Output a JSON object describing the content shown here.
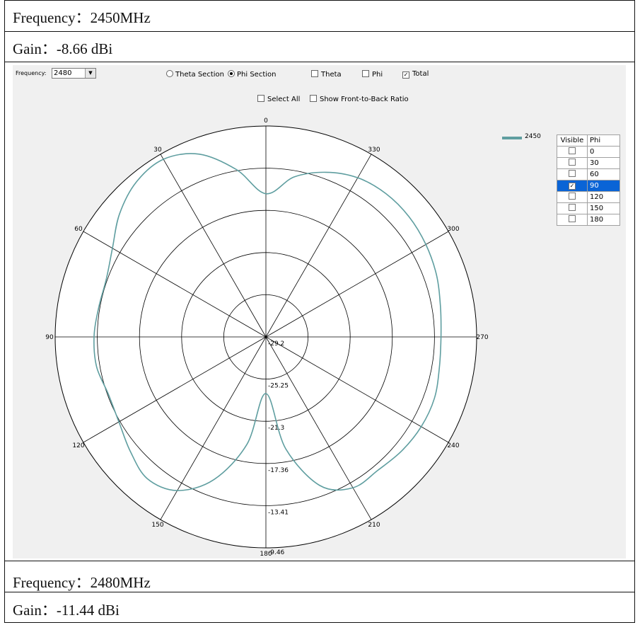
{
  "top_info": {
    "frequency_line": "Frequency：2450MHz",
    "gain_line": "Gain：-8.66 dBi"
  },
  "bottom_info": {
    "frequency_line": "Frequency：2480MHz",
    "gain_line": "Gain：-11.44 dBi"
  },
  "toolbar": {
    "frequency_label": "Frequency:",
    "frequency_value": "2480",
    "theta_section": "Theta Section",
    "phi_section": "Phi Section",
    "theta": "Theta",
    "phi": "Phi",
    "total": "Total",
    "select_all": "Select All",
    "front_to_back": "Show Front-to-Back Ratio"
  },
  "legend": {
    "label": "2450",
    "color": "#5f9ea0"
  },
  "phi_table": {
    "headers": [
      "Visible",
      "Phi"
    ],
    "rows": [
      {
        "phi": "0",
        "visible": false
      },
      {
        "phi": "30",
        "visible": false
      },
      {
        "phi": "60",
        "visible": false
      },
      {
        "phi": "90",
        "visible": true
      },
      {
        "phi": "120",
        "visible": false
      },
      {
        "phi": "150",
        "visible": false
      },
      {
        "phi": "180",
        "visible": false
      }
    ]
  },
  "chart_data": {
    "type": "polar-line",
    "angle_labels": [
      "0",
      "330",
      "300",
      "270",
      "240",
      "210",
      "180",
      "150",
      "120",
      "90",
      "60",
      "30"
    ],
    "radial_labels": [
      "-29.2",
      "-25.25",
      "-21.3",
      "-17.36",
      "-13.41",
      "-9.46"
    ],
    "radial_range": [
      -29.2,
      -9.46
    ],
    "series": [
      {
        "name": "2450",
        "color": "#5f9ea0",
        "angles_deg": [
          0,
          10,
          20,
          30,
          40,
          50,
          60,
          70,
          80,
          90,
          100,
          110,
          120,
          130,
          140,
          150,
          160,
          170,
          180,
          190,
          200,
          210,
          220,
          230,
          240,
          250,
          260,
          270,
          280,
          290,
          300,
          310,
          320,
          330,
          340,
          350,
          360
        ],
        "gain_dbi": [
          -15.8,
          -13.3,
          -11.0,
          -10.0,
          -10.3,
          -11.3,
          -12.6,
          -13.3,
          -13.3,
          -13.1,
          -13.1,
          -13.5,
          -13.3,
          -12.6,
          -11.9,
          -12.6,
          -15.0,
          -19.0,
          -23.9,
          -18.6,
          -14.4,
          -12.9,
          -12.9,
          -12.6,
          -12.4,
          -12.4,
          -12.7,
          -12.8,
          -12.6,
          -12.2,
          -11.9,
          -11.7,
          -11.7,
          -12.0,
          -12.8,
          -14.0,
          -15.8
        ]
      }
    ]
  }
}
